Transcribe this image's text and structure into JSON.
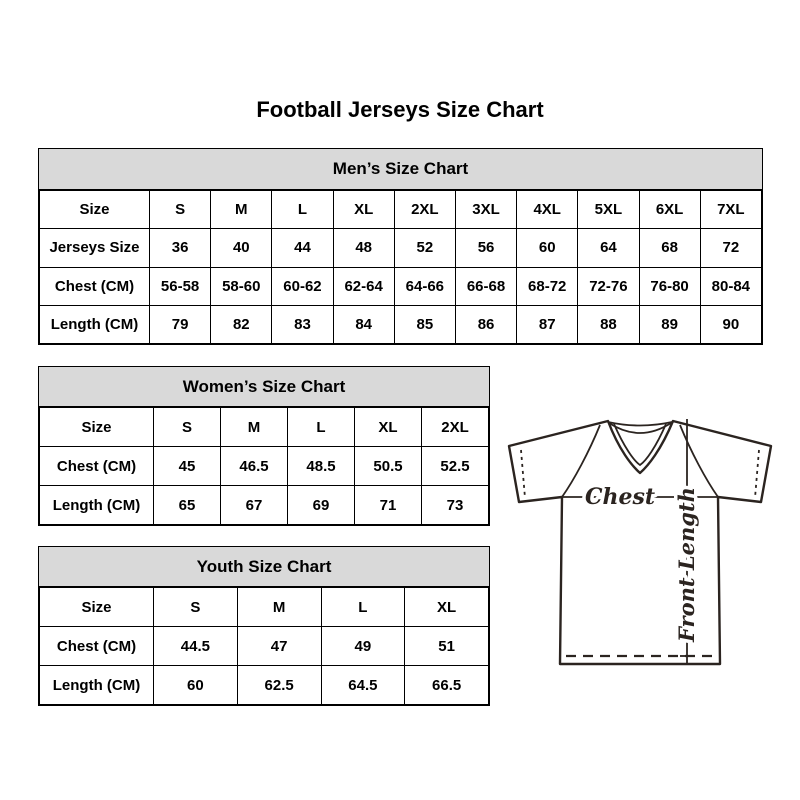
{
  "page": {
    "main_title": "Football Jerseys Size Chart"
  },
  "chart_data": [
    {
      "id": "mens",
      "type": "table",
      "title": "Men’s Size Chart",
      "rows": [
        [
          "Size",
          "S",
          "M",
          "L",
          "XL",
          "2XL",
          "3XL",
          "4XL",
          "5XL",
          "6XL",
          "7XL"
        ],
        [
          "Jerseys Size",
          "36",
          "40",
          "44",
          "48",
          "52",
          "56",
          "60",
          "64",
          "68",
          "72"
        ],
        [
          "Chest (CM)",
          "56-58",
          "58-60",
          "60-62",
          "62-64",
          "64-66",
          "66-68",
          "68-72",
          "72-76",
          "76-80",
          "80-84"
        ],
        [
          "Length (CM)",
          "79",
          "82",
          "83",
          "84",
          "85",
          "86",
          "87",
          "88",
          "89",
          "90"
        ]
      ]
    },
    {
      "id": "womens",
      "type": "table",
      "title": "Women’s Size Chart",
      "rows": [
        [
          "Size",
          "S",
          "M",
          "L",
          "XL",
          "2XL"
        ],
        [
          "Chest (CM)",
          "45",
          "46.5",
          "48.5",
          "50.5",
          "52.5"
        ],
        [
          "Length (CM)",
          "65",
          "67",
          "69",
          "71",
          "73"
        ]
      ]
    },
    {
      "id": "youth",
      "type": "table",
      "title": "Youth Size Chart",
      "rows": [
        [
          "Size",
          "S",
          "M",
          "L",
          "XL"
        ],
        [
          "Chest (CM)",
          "44.5",
          "47",
          "49",
          "51"
        ],
        [
          "Length (CM)",
          "60",
          "62.5",
          "64.5",
          "66.5"
        ]
      ]
    }
  ],
  "diagram": {
    "chest_label": "Chest",
    "front_length_label": "Front Length"
  },
  "colors": {
    "table_header_bg": "#d9d9d9",
    "table_border": "#000000",
    "text": "#000000",
    "sketch_outline": "#2b2420"
  }
}
